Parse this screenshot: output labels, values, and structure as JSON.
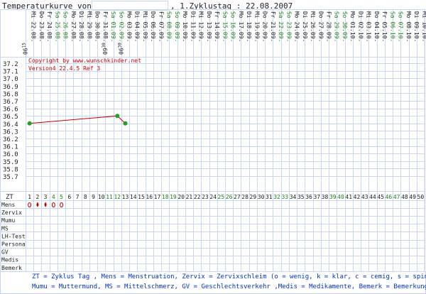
{
  "header": {
    "title": "Temperaturkurve von:",
    "name_value": "",
    "cycle_label": ", 1.Zyklustag : 22.08.2007"
  },
  "copyright": {
    "line1": "Copyright by www.wunschkinder.net",
    "line2": "Version4 22.4.5 Ref 3"
  },
  "colors": {
    "grid": "#c8d6ee",
    "weekend": "#208020",
    "weekday": "#222222",
    "curve": "#cc0000",
    "point": "#20a020",
    "copyright": "#cc0000",
    "legend": "#0033cc",
    "drop": "#cc0000"
  },
  "chart_data": {
    "type": "line",
    "days": 50,
    "dates": [
      {
        "d": "Mi 22.08.",
        "w": false
      },
      {
        "d": "Do 23.08.",
        "w": false
      },
      {
        "d": "Fr 24.08.",
        "w": false
      },
      {
        "d": "Sa 25.08.",
        "w": true
      },
      {
        "d": "So 26.08.",
        "w": true
      },
      {
        "d": "Mo 27.08.",
        "w": false
      },
      {
        "d": "Di 28.08.",
        "w": false
      },
      {
        "d": "Mi 29.08.",
        "w": false
      },
      {
        "d": "Do 30.08.",
        "w": false
      },
      {
        "d": "Fr 31.08.",
        "w": false
      },
      {
        "d": "Sa 01.09.",
        "w": true
      },
      {
        "d": "So 02.09.",
        "w": true
      },
      {
        "d": "Mo 03.09.",
        "w": false
      },
      {
        "d": "Di 04.09.",
        "w": false
      },
      {
        "d": "Mi 05.09.",
        "w": false
      },
      {
        "d": "Do 06.09.",
        "w": false
      },
      {
        "d": "Fr 07.09.",
        "w": false
      },
      {
        "d": "Sa 08.09.",
        "w": true
      },
      {
        "d": "So 09.09.",
        "w": true
      },
      {
        "d": "Mo 10.09.",
        "w": false
      },
      {
        "d": "Di 11.09.",
        "w": false
      },
      {
        "d": "Mi 12.09.",
        "w": false
      },
      {
        "d": "Do 13.09.",
        "w": false
      },
      {
        "d": "Fr 14.09.",
        "w": false
      },
      {
        "d": "Sa 15.09.",
        "w": true
      },
      {
        "d": "So 16.09.",
        "w": true
      },
      {
        "d": "Mo 17.09.",
        "w": false
      },
      {
        "d": "Di 18.09.",
        "w": false
      },
      {
        "d": "Mi 19.09.",
        "w": false
      },
      {
        "d": "Do 20.09.",
        "w": false
      },
      {
        "d": "Fr 21.09.",
        "w": false
      },
      {
        "d": "Sa 22.09.",
        "w": true
      },
      {
        "d": "So 23.09.",
        "w": true
      },
      {
        "d": "Mo 24.09.",
        "w": false
      },
      {
        "d": "Di 25.09.",
        "w": false
      },
      {
        "d": "Mi 26.09.",
        "w": false
      },
      {
        "d": "Do 27.09.",
        "w": false
      },
      {
        "d": "Fr 28.09.",
        "w": false
      },
      {
        "d": "Sa 29.09.",
        "w": true
      },
      {
        "d": "So 30.09.",
        "w": true
      },
      {
        "d": "Mo 01.10.",
        "w": false
      },
      {
        "d": "Di 02.10.",
        "w": false
      },
      {
        "d": "Mi 03.10.",
        "w": false
      },
      {
        "d": "Do 04.10.",
        "w": false
      },
      {
        "d": "Fr 05.10.",
        "w": false
      },
      {
        "d": "Sa 06.10.",
        "w": true
      },
      {
        "d": "So 07.10.",
        "w": true
      },
      {
        "d": "Mo 08.10.",
        "w": false
      },
      {
        "d": "Di 09.10.",
        "w": false
      },
      {
        "d": "Mi 10.10.",
        "w": false
      }
    ],
    "measure_times": [
      {
        "day": 1,
        "time": "06",
        "sup": "15"
      },
      {
        "day": 11,
        "time": "09",
        "sup": "30"
      },
      {
        "day": 13,
        "time": "06",
        "sup": "30"
      }
    ],
    "y_ticks": [
      "37.2",
      "37.1",
      "37.0",
      "36.9",
      "36.8",
      "36.7",
      "36.6",
      "36.5",
      "36.4",
      "36.3",
      "36.2",
      "36.1",
      "36.0",
      "35.9",
      "35.8",
      "35.7"
    ],
    "ylim": [
      35.7,
      37.2
    ],
    "points": [
      {
        "day": 1,
        "temp": 36.4
      },
      {
        "day": 12,
        "temp": 36.5
      },
      {
        "day": 13,
        "temp": 36.4
      }
    ],
    "zt_label": "ZT",
    "row_labels": [
      "Mens",
      "Zervix",
      "Mumu",
      "MS",
      "LH-Test",
      "Persona",
      "GV",
      "Medis",
      "Bemerk"
    ],
    "mens": [
      {
        "day": 1,
        "symbol": "o"
      },
      {
        "day": 2,
        "symbol": "drop"
      },
      {
        "day": 3,
        "symbol": "drop"
      },
      {
        "day": 4,
        "symbol": "o"
      },
      {
        "day": 5,
        "symbol": "o"
      }
    ]
  },
  "legend": {
    "line1": "ZT = Zyklus Tag , Mens = Menstruation, Zervix = Zervixschleim (o = wenig, k = klar, c = cemig, s = spinnbar)",
    "line2": "Mumu = Muttermund, MS = Mittelschmerz, GV = Geschlechtsverkehr ,Medis = Medikamente, Bemerk = Bemerkungen"
  }
}
